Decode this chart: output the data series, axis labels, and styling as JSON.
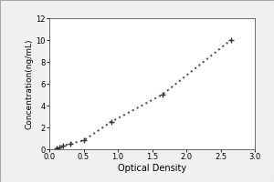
{
  "x_data": [
    0.1,
    0.15,
    0.2,
    0.3,
    0.5,
    0.9,
    1.65,
    2.65
  ],
  "y_data": [
    0.1,
    0.2,
    0.3,
    0.5,
    0.8,
    2.5,
    5.0,
    10.0
  ],
  "xlabel": "Optical Density",
  "ylabel": "Concentration(ng/mL)",
  "xlim": [
    0,
    3
  ],
  "ylim": [
    0,
    12
  ],
  "xticks": [
    0,
    0.5,
    1.0,
    1.5,
    2.0,
    2.5,
    3.0
  ],
  "yticks": [
    0,
    2,
    4,
    6,
    8,
    10,
    12
  ],
  "line_color": "#555555",
  "marker": "+",
  "marker_color": "#333333",
  "marker_size": 5,
  "line_style": "dotted",
  "line_width": 1.5,
  "bg_color": "#ffffff",
  "outer_bg": "#ffffff",
  "xlabel_fontsize": 7,
  "ylabel_fontsize": 6.5,
  "tick_fontsize": 6,
  "box_bg": "#f0f0f0"
}
